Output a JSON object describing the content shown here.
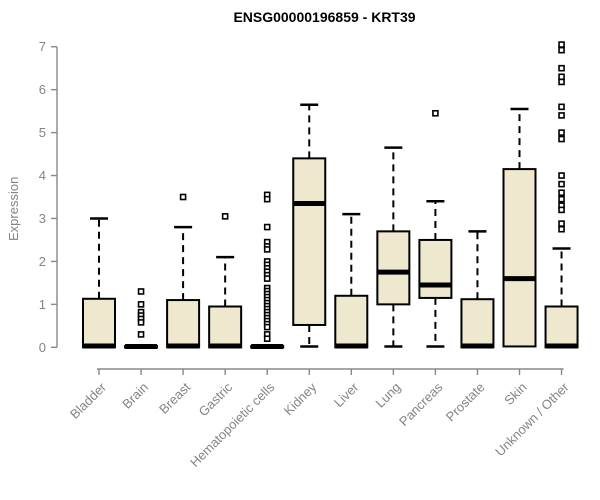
{
  "chart_data": {
    "type": "boxplot",
    "title": "ENSG00000196859 - KRT39",
    "ylabel": "Expression",
    "xlabel": "",
    "ylim": [
      0,
      7.15
    ],
    "yticks": [
      0,
      1,
      2,
      3,
      4,
      5,
      6,
      7
    ],
    "grid": false,
    "legend": "none",
    "colors": {
      "box_fill": "#EDE8CE",
      "box_border": "#000000",
      "median": "#000000",
      "whisker": "#000000",
      "axis": "#888888",
      "tick_label": "#848484",
      "title": "#000000"
    },
    "categories": [
      "Bladder",
      "Brain",
      "Breast",
      "Gastric",
      "Hematopoietic cells",
      "Kidney",
      "Liver",
      "Lung",
      "Pancreas",
      "Prostate",
      "Skin",
      "Unknown / Other"
    ],
    "series": [
      {
        "name": "Bladder",
        "whisker_low": 0,
        "q1": 0,
        "median": 0.03,
        "q3": 1.13,
        "whisker_high": 3.0,
        "outliers": []
      },
      {
        "name": "Brain",
        "whisker_low": 0,
        "q1": 0,
        "median": 0.02,
        "q3": 0.03,
        "whisker_high": 0.03,
        "outliers": [
          1.3,
          1.0,
          0.82,
          0.74,
          0.66,
          0.58,
          0.3
        ]
      },
      {
        "name": "Breast",
        "whisker_low": 0,
        "q1": 0,
        "median": 0.03,
        "q3": 1.1,
        "whisker_high": 2.8,
        "outliers": [
          3.5
        ]
      },
      {
        "name": "Gastric",
        "whisker_low": 0,
        "q1": 0,
        "median": 0.03,
        "q3": 0.95,
        "whisker_high": 2.1,
        "outliers": [
          3.05
        ]
      },
      {
        "name": "Hematopoietic cells",
        "whisker_low": 0,
        "q1": 0,
        "median": 0.02,
        "q3": 0.03,
        "whisker_high": 0.03,
        "outliers": [
          3.55,
          3.45,
          2.8,
          2.45,
          2.35,
          2.28,
          2.0,
          1.92,
          1.84,
          1.76,
          1.68,
          1.6,
          1.38,
          1.31,
          1.24,
          1.17,
          1.1,
          1.03,
          0.96,
          0.89,
          0.82,
          0.75,
          0.68,
          0.61,
          0.54,
          0.47,
          0.3,
          0.2
        ]
      },
      {
        "name": "Kidney",
        "whisker_low": 0.02,
        "q1": 0.52,
        "median": 3.35,
        "q3": 4.4,
        "whisker_high": 5.65,
        "outliers": []
      },
      {
        "name": "Liver",
        "whisker_low": 0,
        "q1": 0,
        "median": 0.03,
        "q3": 1.2,
        "whisker_high": 3.1,
        "outliers": []
      },
      {
        "name": "Lung",
        "whisker_low": 0.02,
        "q1": 1.0,
        "median": 1.75,
        "q3": 2.7,
        "whisker_high": 4.65,
        "outliers": []
      },
      {
        "name": "Pancreas",
        "whisker_low": 0.02,
        "q1": 1.15,
        "median": 1.45,
        "q3": 2.5,
        "whisker_high": 3.4,
        "outliers": [
          5.45
        ]
      },
      {
        "name": "Prostate",
        "whisker_low": 0,
        "q1": 0,
        "median": 0.03,
        "q3": 1.12,
        "whisker_high": 2.7,
        "outliers": []
      },
      {
        "name": "Skin",
        "whisker_low": 0.02,
        "q1": 0.02,
        "median": 1.6,
        "q3": 4.15,
        "whisker_high": 5.55,
        "outliers": []
      },
      {
        "name": "Unknown / Other",
        "whisker_low": 0,
        "q1": 0,
        "median": 0.03,
        "q3": 0.95,
        "whisker_high": 2.3,
        "outliers": [
          7.05,
          6.92,
          6.5,
          6.3,
          6.18,
          5.6,
          5.4,
          5.0,
          4.85,
          4.0,
          3.8,
          3.6,
          3.45,
          3.3,
          3.2,
          2.88,
          2.75
        ]
      }
    ]
  }
}
